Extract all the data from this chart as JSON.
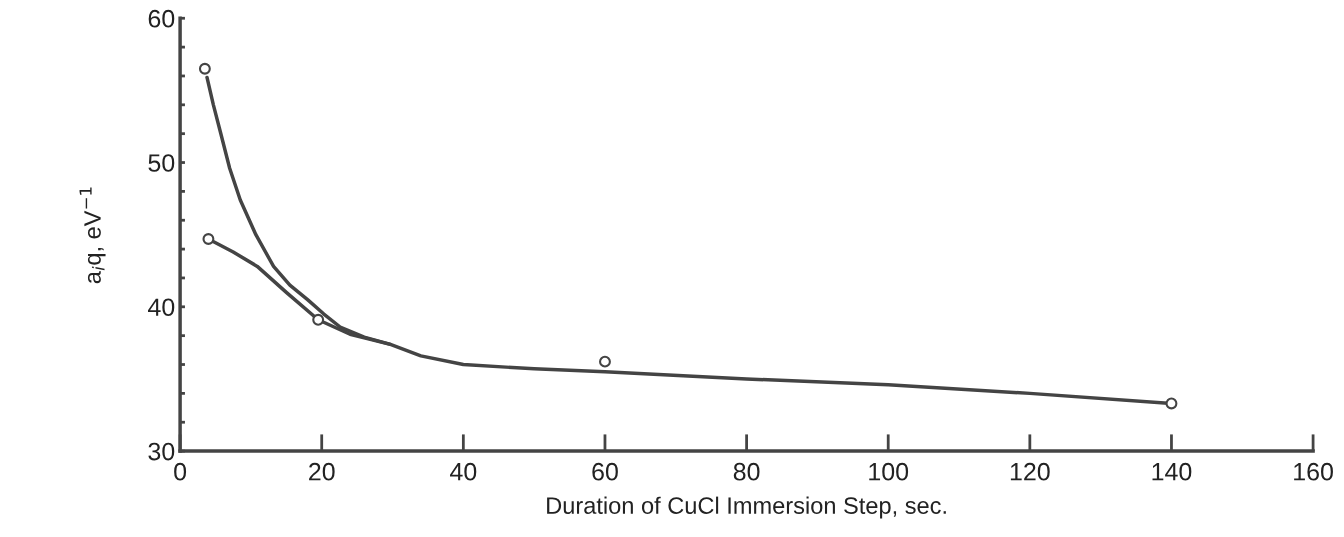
{
  "chart_data": {
    "type": "scatter",
    "xlabel": "Duration of CuCl Immersion Step, sec.",
    "ylabel": "a$_{i}$q, eV$^{−1}$",
    "series": [
      {
        "color": "#444444",
        "marker": "circle",
        "x": [
          3.5,
          4,
          19.5,
          60,
          140
        ],
        "values": [
          56.5,
          44.7,
          39.1,
          36.2,
          33.3
        ]
      },
      {
        "type": "line",
        "color": "#444444",
        "marker": "none",
        "x": [
          3.8,
          4.7,
          5.7,
          7.0,
          8.5,
          10.7,
          13.2,
          15.5,
          18.0,
          20.3,
          22.6,
          26,
          29.7,
          34,
          40,
          50,
          60,
          80,
          100,
          120,
          140
        ],
        "values": [
          55.9,
          54.0,
          52.1,
          49.6,
          47.4,
          45.0,
          42.8,
          41.5,
          40.5,
          39.5,
          38.6,
          37.9,
          37.4,
          36.6,
          36.0,
          35.7,
          35.5,
          35.0,
          34.6,
          34.0,
          33.3
        ]
      },
      {
        "type": "line",
        "color": "#444444",
        "marker": "none",
        "x": [
          4,
          7.5,
          10.9,
          15,
          19.5,
          24,
          29.7
        ],
        "values": [
          44.7,
          43.8,
          42.8,
          41.0,
          39.1,
          38.1,
          37.4
        ]
      }
    ],
    "xlim": [
      0,
      160
    ],
    "xticks": [
      0,
      20,
      40,
      60,
      80,
      100,
      120,
      140,
      160
    ],
    "ylim": [
      30,
      60
    ],
    "yticks": [
      30,
      {
        "value": 32,
        "label": null
      },
      {
        "value": 34,
        "label": null
      },
      {
        "value": 36,
        "label": null
      },
      {
        "value": 38,
        "label": null
      },
      40,
      {
        "value": 42,
        "label": null
      },
      {
        "value": 44,
        "label": null
      },
      {
        "value": 46,
        "label": null
      },
      {
        "value": 48,
        "label": null
      },
      50,
      {
        "value": 52,
        "label": null
      },
      {
        "value": 54,
        "label": null
      },
      {
        "value": 56,
        "label": null
      },
      {
        "value": 58,
        "label": null
      },
      60
    ],
    "grid": false,
    "legend": false
  }
}
